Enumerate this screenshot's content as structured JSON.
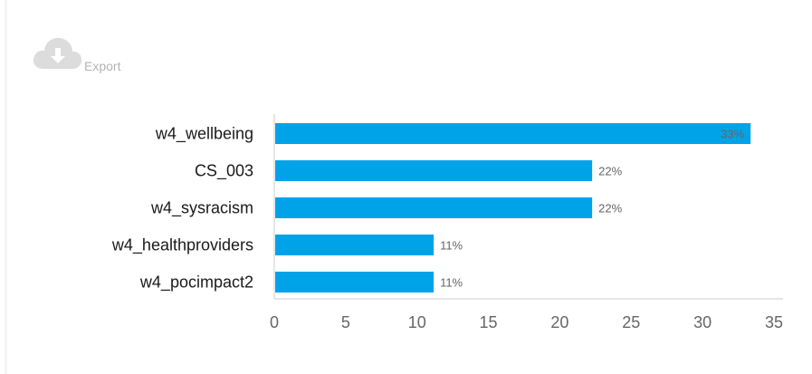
{
  "export": {
    "label": "Export",
    "icon": "cloud-download-icon"
  },
  "chart_data": {
    "type": "bar",
    "orientation": "horizontal",
    "categories": [
      "w4_wellbeing",
      "CS_003",
      "w4_sysracism",
      "w4_healthproviders",
      "w4_pocimpact2"
    ],
    "values": [
      33.3,
      22.2,
      22.2,
      11.1,
      11.1
    ],
    "data_labels": [
      "33%",
      "22%",
      "22%",
      "11%",
      "11%"
    ],
    "xlim": [
      0,
      35
    ],
    "xticks": [
      0,
      5,
      10,
      15,
      20,
      25,
      30,
      35
    ],
    "bar_color": "#00a3e8",
    "grid": false,
    "legend": "none"
  }
}
